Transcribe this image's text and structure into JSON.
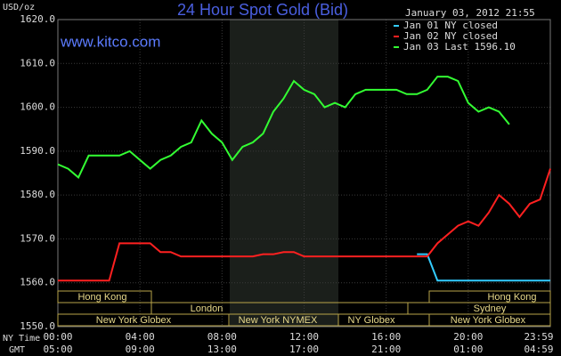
{
  "chart_data": {
    "type": "line",
    "title": "24 Hour Spot Gold (Bid)",
    "y_label": "USD/oz",
    "watermark": "www.kitco.com",
    "timestamp": "January 03, 2012 21:55",
    "x_row_labels": [
      "NY Time",
      "GMT"
    ],
    "x": [
      0,
      0.5,
      1,
      1.5,
      2,
      2.5,
      3,
      3.5,
      4,
      4.5,
      5,
      5.5,
      6,
      6.5,
      7,
      7.5,
      8,
      8.5,
      9,
      9.5,
      10,
      10.5,
      11,
      11.5,
      12,
      12.5,
      13,
      13.5,
      14,
      14.5,
      15,
      15.5,
      16,
      16.5,
      17,
      17.5,
      18,
      18.5,
      19,
      19.5,
      20,
      20.5,
      21,
      21.5,
      22,
      22.5,
      23,
      23.5,
      24
    ],
    "series": [
      {
        "name": "Jan 01 NY closed",
        "color": "#33ccff",
        "values": [
          null,
          null,
          null,
          null,
          null,
          null,
          null,
          null,
          null,
          null,
          null,
          null,
          null,
          null,
          null,
          null,
          null,
          null,
          null,
          null,
          null,
          null,
          null,
          null,
          null,
          null,
          null,
          null,
          null,
          null,
          null,
          null,
          null,
          null,
          null,
          1566.5,
          1566.5,
          1560.5,
          1560.5,
          1560.5,
          1560.5,
          1560.5,
          1560.5,
          1560.5,
          1560.5,
          1560.5,
          1560.5,
          1560.5,
          1560.5
        ]
      },
      {
        "name": "Jan 02 NY closed",
        "color": "#ff2020",
        "values": [
          1560.5,
          1560.5,
          1560.5,
          1560.5,
          1560.5,
          1560.5,
          1569,
          1569,
          1569,
          1569,
          1567,
          1567,
          1566,
          1566,
          1566,
          1566,
          1566,
          1566,
          1566,
          1566,
          1566.5,
          1566.5,
          1567,
          1567,
          1566,
          1566,
          1566,
          1566,
          1566,
          1566,
          1566,
          1566,
          1566,
          1566,
          1566,
          1566,
          1566,
          1569,
          1571,
          1573,
          1574,
          1573,
          1576,
          1580,
          1578,
          1575,
          1578,
          1579,
          1586
        ]
      },
      {
        "name": "Jan 03 Last 1596.10",
        "color": "#33ff33",
        "values": [
          1587,
          1586,
          1584,
          1589,
          1589,
          1589,
          1589,
          1590,
          1588,
          1586,
          1588,
          1589,
          1591,
          1592,
          1597,
          1594,
          1592,
          1588,
          1591,
          1592,
          1594,
          1599,
          1602,
          1606,
          1604,
          1603,
          1600,
          1601,
          1600,
          1603,
          1604,
          1604,
          1604,
          1604,
          1603,
          1603,
          1604,
          1607,
          1607,
          1606,
          1601,
          1599,
          1600,
          1599,
          1596.1,
          null,
          null,
          null,
          null
        ]
      }
    ],
    "xlim": [
      0,
      24
    ],
    "xticks": [
      {
        "value": 0,
        "label": "00:00"
      },
      {
        "value": 4,
        "label": "04:00"
      },
      {
        "value": 8,
        "label": "08:00"
      },
      {
        "value": 12,
        "label": "12:00"
      },
      {
        "value": 16,
        "label": "16:00"
      },
      {
        "value": 20,
        "label": "20:00"
      },
      {
        "value": 24,
        "label": "23:59"
      }
    ],
    "xticks_gmt": [
      {
        "value": 0,
        "label": "05:00"
      },
      {
        "value": 4,
        "label": "09:00"
      },
      {
        "value": 8,
        "label": "13:00"
      },
      {
        "value": 12,
        "label": "17:00"
      },
      {
        "value": 16,
        "label": "21:00"
      },
      {
        "value": 20,
        "label": "01:00"
      },
      {
        "value": 24,
        "label": "04:59"
      }
    ],
    "ylim": [
      1550,
      1620
    ],
    "yticks": [
      {
        "value": 1550,
        "label": "1550.0"
      },
      {
        "value": 1560,
        "label": "1560.0"
      },
      {
        "value": 1570,
        "label": "1570.0"
      },
      {
        "value": 1580,
        "label": "1580.0"
      },
      {
        "value": 1590,
        "label": "1590.0"
      },
      {
        "value": 1600,
        "label": "1600.0"
      },
      {
        "value": 1610,
        "label": "1610.0"
      },
      {
        "value": 1620,
        "label": "1620.0"
      }
    ],
    "grid": true,
    "sessions": [
      "Hong Kong",
      "London",
      "New York Globex",
      "New York NYMEX",
      "NY Globex",
      "Sydney",
      "Hong Kong",
      "New York Globex"
    ]
  }
}
